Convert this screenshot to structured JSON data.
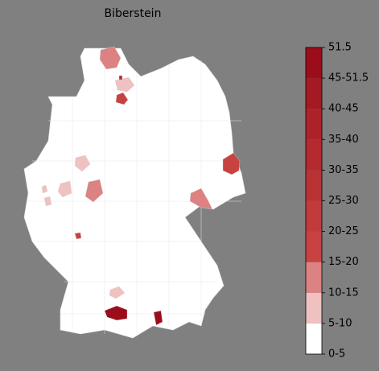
{
  "title": "Biberstein",
  "colorbar": {
    "labels": [
      "0-5",
      "5-10",
      "10-15",
      "15-20",
      "20-25",
      "25-30",
      "30-35",
      "35-40",
      "40-45",
      "45-51.5",
      "51.5"
    ],
    "colors": [
      "#ffffff",
      "#efc1c1",
      "#dc8282",
      "#c84242",
      "#c23a3a",
      "#bb3234",
      "#b42a2e",
      "#ad2228",
      "#a51a22",
      "#9c0d1c"
    ]
  }
}
